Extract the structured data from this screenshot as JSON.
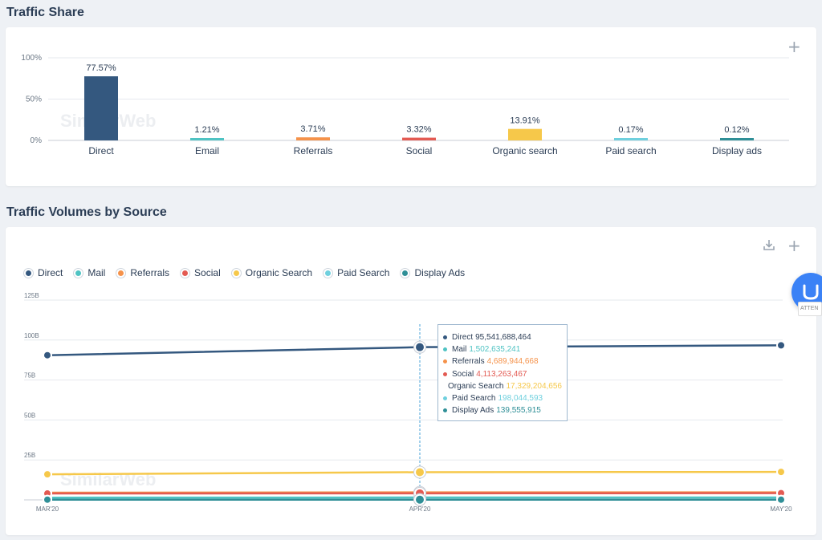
{
  "traffic_share": {
    "title": "Traffic Share",
    "watermark": "SimilarWeb",
    "add_label": "+"
  },
  "traffic_volumes": {
    "title": "Traffic Volumes by Source",
    "watermark": "SimilarWeb",
    "add_label": "+",
    "download_icon": "download-icon"
  },
  "legend": [
    {
      "label": "Direct",
      "color": "#34587f"
    },
    {
      "label": "Mail",
      "color": "#4fc3c3"
    },
    {
      "label": "Referrals",
      "color": "#f5924a"
    },
    {
      "label": "Social",
      "color": "#e35a52"
    },
    {
      "label": "Organic Search",
      "color": "#f6c84a"
    },
    {
      "label": "Paid Search",
      "color": "#6fd0de"
    },
    {
      "label": "Display Ads",
      "color": "#2f8f97"
    }
  ],
  "tooltip": {
    "rows": [
      {
        "label": "Direct",
        "value": "95,541,688,464",
        "color": "#34587f"
      },
      {
        "label": "Mail",
        "value": "1,502,635,241",
        "color": "#4fc3c3"
      },
      {
        "label": "Referrals",
        "value": "4,689,944,668",
        "color": "#f5924a"
      },
      {
        "label": "Social",
        "value": "4,113,263,467",
        "color": "#e35a52"
      },
      {
        "label": "Organic Search",
        "value": "17,329,204,656",
        "color": "#f6c84a"
      },
      {
        "label": "Paid Search",
        "value": "198,044,593",
        "color": "#6fd0de"
      },
      {
        "label": "Display Ads",
        "value": "139,555,915",
        "color": "#2f8f97"
      }
    ]
  },
  "chat_widget": {
    "badge": "ATTEN"
  },
  "chart_data": [
    {
      "type": "bar",
      "title": "Traffic Share",
      "categories": [
        "Direct",
        "Email",
        "Referrals",
        "Social",
        "Organic search",
        "Paid search",
        "Display ads"
      ],
      "values": [
        77.57,
        1.21,
        3.71,
        3.32,
        13.91,
        0.17,
        0.12
      ],
      "value_labels": [
        "77.57%",
        "1.21%",
        "3.71%",
        "3.32%",
        "13.91%",
        "0.17%",
        "0.12%"
      ],
      "colors": [
        "#34587f",
        "#4fc3c3",
        "#f5924a",
        "#e35a52",
        "#f6c84a",
        "#6fd0de",
        "#2f8f97"
      ],
      "yticks": [
        "100%",
        "50%",
        "0%"
      ],
      "ylim": [
        0,
        100
      ],
      "grid": true
    },
    {
      "type": "line",
      "title": "Traffic Volumes by Source",
      "x": [
        "MAR'20",
        "APR'20",
        "MAY'20"
      ],
      "yticks": [
        "125B",
        "100B",
        "75B",
        "50B",
        "25B"
      ],
      "ylim": [
        0,
        125
      ],
      "grid": true,
      "series": [
        {
          "name": "Direct",
          "color": "#34587f",
          "values": [
            90.5,
            95.54,
            96.7
          ]
        },
        {
          "name": "Mail",
          "color": "#4fc3c3",
          "values": [
            1.4,
            1.5,
            1.5
          ]
        },
        {
          "name": "Referrals",
          "color": "#f5924a",
          "values": [
            4.5,
            4.69,
            4.7
          ]
        },
        {
          "name": "Social",
          "color": "#e35a52",
          "values": [
            4.0,
            4.11,
            4.2
          ]
        },
        {
          "name": "Organic Search",
          "color": "#f6c84a",
          "values": [
            16.0,
            17.33,
            17.5
          ]
        },
        {
          "name": "Paid Search",
          "color": "#6fd0de",
          "values": [
            0.2,
            0.2,
            0.2
          ]
        },
        {
          "name": "Display Ads",
          "color": "#2f8f97",
          "values": [
            0.14,
            0.14,
            0.14
          ]
        }
      ],
      "highlight_index": 1,
      "legend_position": "top-left"
    }
  ]
}
